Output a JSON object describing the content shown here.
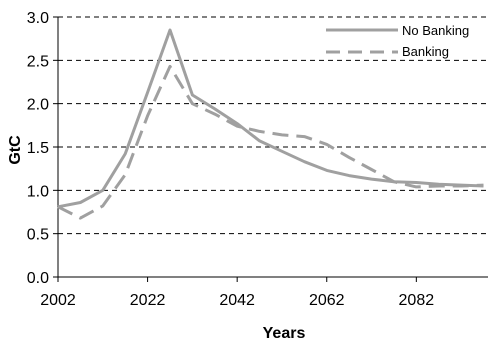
{
  "chart_data": {
    "type": "line",
    "xlabel": "Years",
    "ylabel": "GtC",
    "xlim": [
      2002,
      2098
    ],
    "ylim": [
      0,
      3
    ],
    "x_ticks": [
      2002,
      2022,
      2042,
      2062,
      2082
    ],
    "y_ticks": [
      "0.0",
      "0.5",
      "1.0",
      "1.5",
      "2.0",
      "2.5",
      "3.0"
    ],
    "grid": "horizontal dashed",
    "legend_position": "top-right",
    "series": [
      {
        "name": "No Banking",
        "style": "solid",
        "color": "#a0a0a0",
        "x": [
          2002,
          2007,
          2012,
          2017,
          2022,
          2027,
          2032,
          2037,
          2042,
          2047,
          2052,
          2057,
          2062,
          2067,
          2072,
          2077,
          2082,
          2087,
          2092,
          2097
        ],
        "y": [
          0.81,
          0.86,
          1.0,
          1.42,
          2.13,
          2.85,
          2.1,
          1.94,
          1.77,
          1.57,
          1.45,
          1.33,
          1.23,
          1.17,
          1.13,
          1.1,
          1.09,
          1.07,
          1.06,
          1.05
        ]
      },
      {
        "name": "Banking",
        "style": "dashed",
        "color": "#a0a0a0",
        "x": [
          2002,
          2007,
          2012,
          2017,
          2022,
          2027,
          2032,
          2037,
          2042,
          2047,
          2052,
          2057,
          2062,
          2067,
          2072,
          2077,
          2082,
          2087,
          2092,
          2097
        ],
        "y": [
          0.81,
          0.68,
          0.82,
          1.18,
          1.86,
          2.43,
          2.0,
          1.88,
          1.74,
          1.68,
          1.64,
          1.62,
          1.53,
          1.38,
          1.24,
          1.1,
          1.04,
          1.05,
          1.05,
          1.06
        ]
      }
    ]
  }
}
